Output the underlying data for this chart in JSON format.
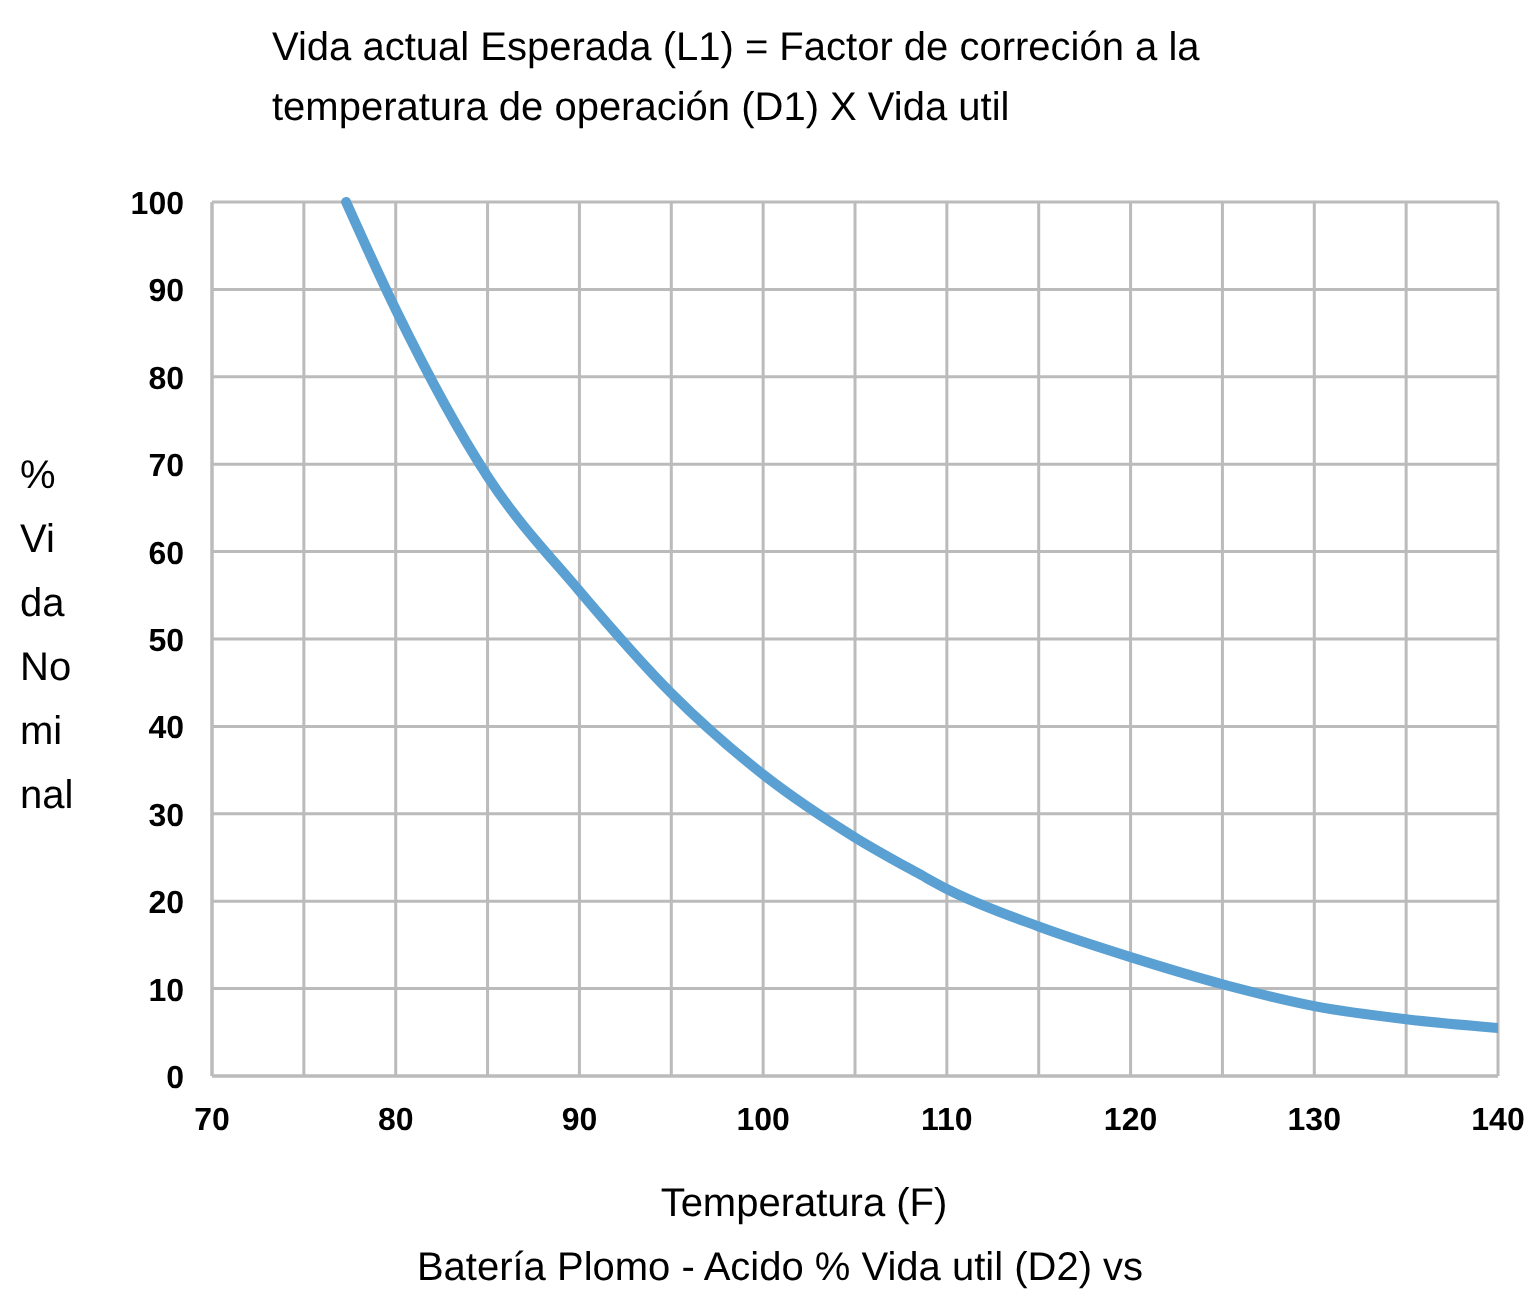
{
  "chart_data": {
    "type": "line",
    "title": "Vida actual Esperada (L1) = Factor de correción a la temperatura de operación (D1) X Vida util",
    "xlabel": "Temperatura (F)",
    "ylabel": "% Vida Nominal",
    "annotations": [
      "Batería Plomo - Acido % Vida util (D2) vs"
    ],
    "x": [
      77.3,
      80,
      85,
      90,
      95,
      100,
      105,
      108.6,
      110,
      115,
      120,
      125,
      130,
      135,
      140
    ],
    "series": [
      {
        "color": "#5aa0d2",
        "values": [
          100,
          87.7,
          68.6,
          55.5,
          43.8,
          34.5,
          27.3,
          23,
          21.4,
          17.1,
          13.6,
          10.5,
          8,
          6.5,
          5.5
        ]
      }
    ],
    "xlim": [
      70,
      140
    ],
    "xticks": [
      70,
      80,
      90,
      100,
      110,
      120,
      130,
      140
    ],
    "ylim": [
      0,
      100
    ],
    "yticks": [
      0,
      10,
      20,
      30,
      40,
      50,
      60,
      70,
      80,
      90,
      100
    ],
    "grid": true,
    "marker": "none",
    "line_style": "solid"
  }
}
